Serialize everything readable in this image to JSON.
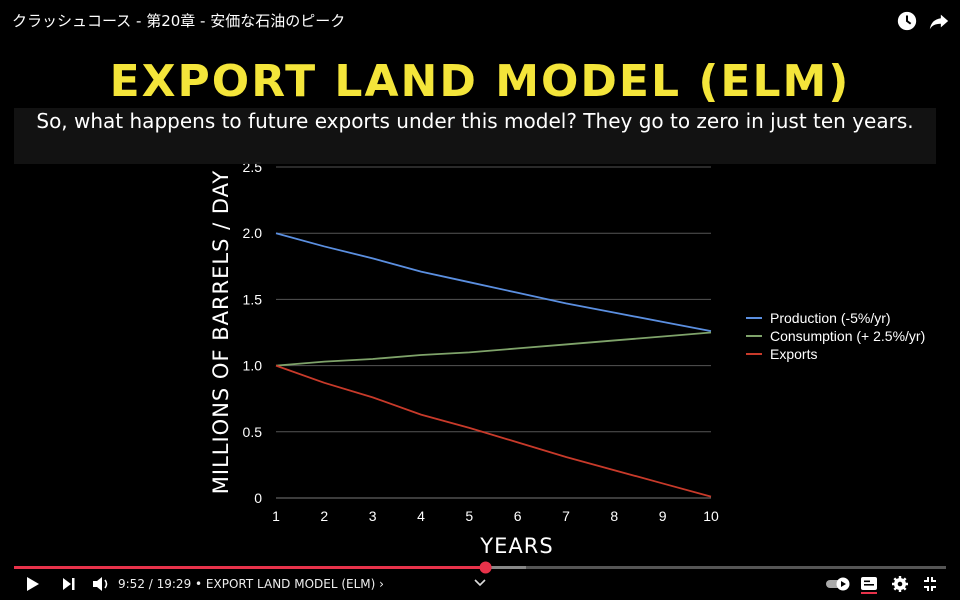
{
  "header": {
    "video_title": "クラッシュコース - 第20章 - 安価な石油のピーク"
  },
  "slide": {
    "title": "EXPORT LAND MODEL (ELM)"
  },
  "caption": {
    "text": "So, what happens to future exports under this model? They go to zero in just ten years."
  },
  "player": {
    "time": "9:52 / 19:29",
    "chapter": "• EXPORT LAND MODEL (ELM) ›",
    "progress": 0.506
  },
  "icons": [
    "watch-later-icon",
    "share-icon",
    "play-icon",
    "next-icon",
    "volume-icon",
    "autoplay-toggle",
    "subtitles-icon",
    "settings-icon",
    "exit-fullscreen-icon",
    "chevron-down-icon"
  ],
  "chart_data": {
    "type": "line",
    "xlabel": "YEARS",
    "ylabel": "MILLIONS OF BARRELS / DAY",
    "x": [
      1,
      2,
      3,
      4,
      5,
      6,
      7,
      8,
      9,
      10
    ],
    "xlim": [
      1,
      10
    ],
    "ylim": [
      0,
      2.5
    ],
    "yticks": [
      "0",
      "0.5",
      "1.0",
      "1.5",
      "2.0",
      "2.5"
    ],
    "xticks": [
      "1",
      "2",
      "3",
      "4",
      "5",
      "6",
      "7",
      "8",
      "9",
      "10"
    ],
    "grid": true,
    "legend": "right",
    "series": [
      {
        "name": "Production (-5%/yr)",
        "color": "#5b8fe0",
        "values": [
          2.0,
          1.9,
          1.81,
          1.71,
          1.63,
          1.55,
          1.47,
          1.4,
          1.33,
          1.26
        ]
      },
      {
        "name": "Consumption (+ 2.5%/yr)",
        "color": "#7fa36a",
        "values": [
          1.0,
          1.03,
          1.05,
          1.08,
          1.1,
          1.13,
          1.16,
          1.19,
          1.22,
          1.25
        ]
      },
      {
        "name": "Exports",
        "color": "#c83a2a",
        "values": [
          1.0,
          0.87,
          0.76,
          0.63,
          0.53,
          0.42,
          0.31,
          0.21,
          0.11,
          0.01
        ]
      }
    ]
  }
}
